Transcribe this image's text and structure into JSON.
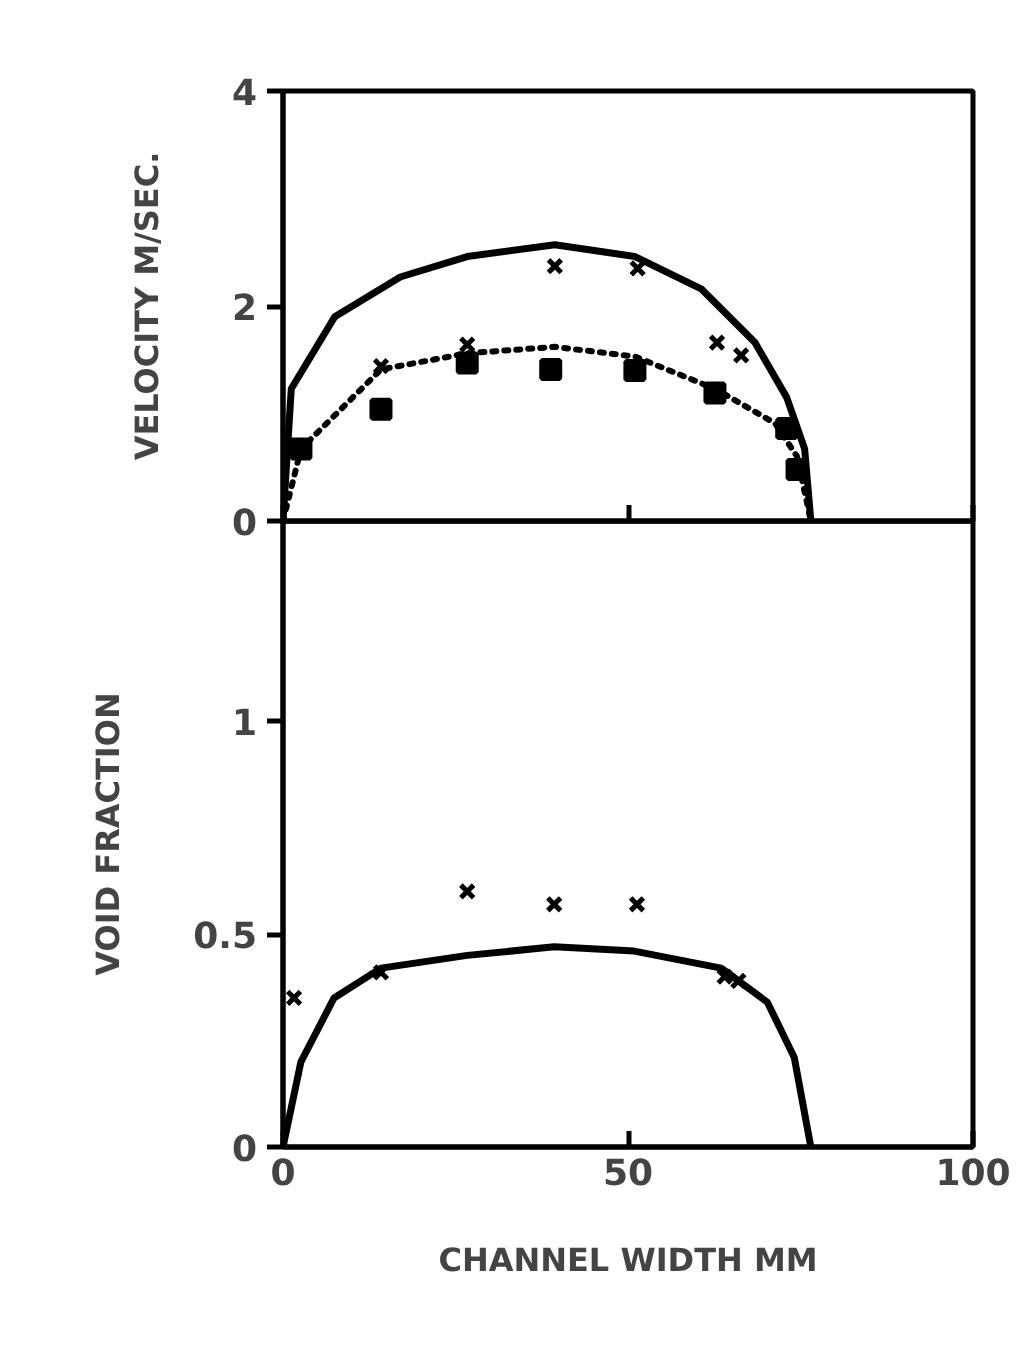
{
  "chart_data": [
    {
      "type": "line",
      "ylabel": "VELOCITY M/SEC.",
      "xlim": [
        0,
        100
      ],
      "xticks": [
        0,
        50,
        100
      ],
      "ylim": [
        0,
        4
      ],
      "yticks": [
        0,
        2,
        4
      ],
      "tick_labels": "y",
      "grid": false,
      "series": [
        {
          "line_style": "solid",
          "color": "#000000",
          "x": [
            0,
            1.2,
            7.5,
            17,
            26.7,
            39.4,
            51,
            60.6,
            68.4,
            73,
            75.6,
            76.5
          ],
          "values": [
            0,
            1.23,
            1.9,
            2.27,
            2.46,
            2.57,
            2.46,
            2.16,
            1.66,
            1.15,
            0.67,
            0
          ]
        },
        {
          "line_style": "dotted",
          "color": "#000000",
          "x": [
            0,
            2.6,
            14.2,
            26.7,
            39.4,
            51,
            62.6,
            71.3,
            74.5,
            76.5
          ],
          "values": [
            0,
            0.67,
            1.41,
            1.56,
            1.62,
            1.53,
            1.23,
            0.91,
            0.6,
            0
          ]
        },
        {
          "type": "scatter",
          "marker": "cross",
          "color": "#000000",
          "x": [
            14.2,
            26.7,
            39.4,
            51.4,
            62.9,
            66.4
          ],
          "values": [
            1.44,
            1.64,
            2.37,
            2.35,
            1.66,
            1.54
          ]
        },
        {
          "type": "scatter",
          "marker": "square",
          "color": "#000000",
          "x": [
            2.6,
            14.2,
            26.7,
            38.8,
            51,
            62.6,
            73,
            74.5
          ],
          "values": [
            0.67,
            1.04,
            1.47,
            1.41,
            1.4,
            1.19,
            0.86,
            0.48
          ]
        }
      ]
    },
    {
      "type": "line",
      "xlabel": "CHANNEL WIDTH MM",
      "ylabel": "VOID FRACTION",
      "xlim": [
        0,
        100
      ],
      "xticks": [
        0,
        50,
        100
      ],
      "ylim": [
        0,
        1.47
      ],
      "yticks": [
        0,
        0.5,
        1
      ],
      "grid": false,
      "series": [
        {
          "line_style": "solid",
          "color": "#000000",
          "x": [
            0,
            2.6,
            7.4,
            14.2,
            26.7,
            39.3,
            50.9,
            63.5,
            70.2,
            74.1,
            76.5
          ],
          "values": [
            0,
            0.2,
            0.35,
            0.42,
            0.45,
            0.47,
            0.46,
            0.42,
            0.34,
            0.21,
            0
          ]
        },
        {
          "type": "scatter",
          "marker": "cross",
          "color": "#000000",
          "x": [
            1.6,
            14.2,
            26.7,
            39.3,
            51.3,
            64,
            66
          ],
          "values": [
            0.35,
            0.41,
            0.6,
            0.57,
            0.57,
            0.4,
            0.39
          ]
        }
      ]
    }
  ]
}
